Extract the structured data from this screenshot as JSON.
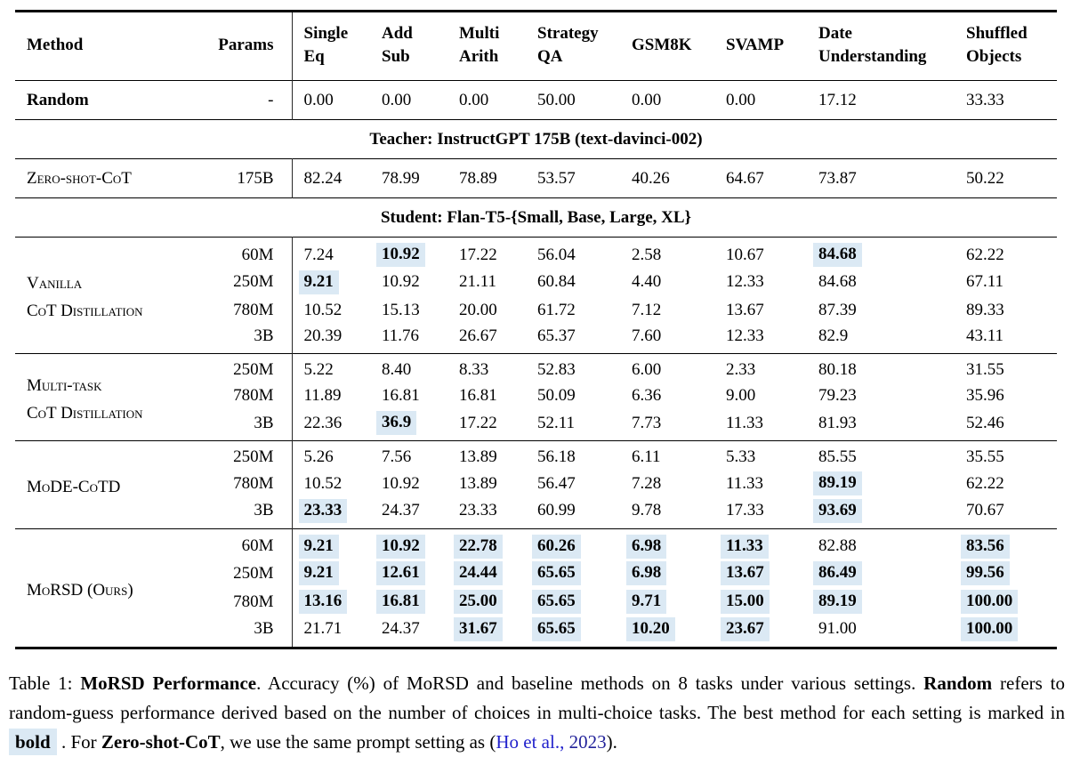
{
  "colors": {
    "highlight": "#dbe9f4",
    "link_cite": "#2222cc",
    "link_year": "#22229a",
    "rule": "#000000",
    "background": "#ffffff"
  },
  "table": {
    "columns": [
      {
        "label": "Method"
      },
      {
        "label": "Params"
      },
      {
        "label": "Single\nEq"
      },
      {
        "label": "Add\nSub"
      },
      {
        "label": "Multi\nArith"
      },
      {
        "label": "Strategy\nQA"
      },
      {
        "label": "GSM8K"
      },
      {
        "label": "SVAMP"
      },
      {
        "label": "Date\nUnderstanding"
      },
      {
        "label": "Shuffled\nObjects"
      }
    ],
    "sections": [
      {
        "method": "Random",
        "style": "bold",
        "rows": [
          {
            "params": "-",
            "cells": [
              {
                "v": "0.00"
              },
              {
                "v": "0.00"
              },
              {
                "v": "0.00"
              },
              {
                "v": "50.00"
              },
              {
                "v": "0.00"
              },
              {
                "v": "0.00"
              },
              {
                "v": "17.12"
              },
              {
                "v": "33.33"
              }
            ]
          }
        ]
      },
      {
        "banner": "Teacher: InstructGPT 175B (text-davinci-002)"
      },
      {
        "method": "Zero-shot-CoT",
        "style": "sc",
        "rows": [
          {
            "params": "175B",
            "cells": [
              {
                "v": "82.24"
              },
              {
                "v": "78.99"
              },
              {
                "v": "78.89"
              },
              {
                "v": "53.57"
              },
              {
                "v": "40.26"
              },
              {
                "v": "64.67"
              },
              {
                "v": "73.87"
              },
              {
                "v": "50.22"
              }
            ]
          }
        ]
      },
      {
        "banner": "Student: Flan-T5-{Small, Base, Large, XL}"
      },
      {
        "method": "Vanilla\nCoT Distillation",
        "style": "sc",
        "rows": [
          {
            "params": "60M",
            "cells": [
              {
                "v": "7.24"
              },
              {
                "v": "10.92",
                "h": true
              },
              {
                "v": "17.22"
              },
              {
                "v": "56.04"
              },
              {
                "v": "2.58"
              },
              {
                "v": "10.67"
              },
              {
                "v": "84.68",
                "h": true
              },
              {
                "v": "62.22"
              }
            ]
          },
          {
            "params": "250M",
            "cells": [
              {
                "v": "9.21",
                "h": true
              },
              {
                "v": "10.92"
              },
              {
                "v": "21.11"
              },
              {
                "v": "60.84"
              },
              {
                "v": "4.40"
              },
              {
                "v": "12.33"
              },
              {
                "v": "84.68"
              },
              {
                "v": "67.11"
              }
            ]
          },
          {
            "params": "780M",
            "cells": [
              {
                "v": "10.52"
              },
              {
                "v": "15.13"
              },
              {
                "v": "20.00"
              },
              {
                "v": "61.72"
              },
              {
                "v": "7.12"
              },
              {
                "v": "13.67"
              },
              {
                "v": "87.39"
              },
              {
                "v": "89.33"
              }
            ]
          },
          {
            "params": "3B",
            "cells": [
              {
                "v": "20.39"
              },
              {
                "v": "11.76"
              },
              {
                "v": "26.67"
              },
              {
                "v": "65.37"
              },
              {
                "v": "7.60"
              },
              {
                "v": "12.33"
              },
              {
                "v": "82.9"
              },
              {
                "v": "43.11"
              }
            ]
          }
        ]
      },
      {
        "method": "Multi-task\nCoT Distillation",
        "style": "sc",
        "rows": [
          {
            "params": "250M",
            "cells": [
              {
                "v": "5.22"
              },
              {
                "v": "8.40"
              },
              {
                "v": "8.33"
              },
              {
                "v": "52.83"
              },
              {
                "v": "6.00"
              },
              {
                "v": "2.33"
              },
              {
                "v": "80.18"
              },
              {
                "v": "31.55"
              }
            ]
          },
          {
            "params": "780M",
            "cells": [
              {
                "v": "11.89"
              },
              {
                "v": "16.81"
              },
              {
                "v": "16.81"
              },
              {
                "v": "50.09"
              },
              {
                "v": "6.36"
              },
              {
                "v": "9.00"
              },
              {
                "v": "79.23"
              },
              {
                "v": "35.96"
              }
            ]
          },
          {
            "params": "3B",
            "cells": [
              {
                "v": "22.36"
              },
              {
                "v": "36.9",
                "h": true
              },
              {
                "v": "17.22"
              },
              {
                "v": "52.11"
              },
              {
                "v": "7.73"
              },
              {
                "v": "11.33"
              },
              {
                "v": "81.93"
              },
              {
                "v": "52.46"
              }
            ]
          }
        ]
      },
      {
        "method": "MoDE-CoTD",
        "style": "sc",
        "rows": [
          {
            "params": "250M",
            "cells": [
              {
                "v": "5.26"
              },
              {
                "v": "7.56"
              },
              {
                "v": "13.89"
              },
              {
                "v": "56.18"
              },
              {
                "v": "6.11"
              },
              {
                "v": "5.33"
              },
              {
                "v": "85.55"
              },
              {
                "v": "35.55"
              }
            ]
          },
          {
            "params": "780M",
            "cells": [
              {
                "v": "10.52"
              },
              {
                "v": "10.92"
              },
              {
                "v": "13.89"
              },
              {
                "v": "56.47"
              },
              {
                "v": "7.28"
              },
              {
                "v": "11.33"
              },
              {
                "v": "89.19",
                "h": true
              },
              {
                "v": "62.22"
              }
            ]
          },
          {
            "params": "3B",
            "cells": [
              {
                "v": "23.33",
                "h": true
              },
              {
                "v": "24.37"
              },
              {
                "v": "23.33"
              },
              {
                "v": "60.99"
              },
              {
                "v": "9.78"
              },
              {
                "v": "17.33"
              },
              {
                "v": "93.69",
                "h": true
              },
              {
                "v": "70.67"
              }
            ]
          }
        ]
      },
      {
        "method": "MoRSD (Ours)",
        "style": "sc",
        "rows": [
          {
            "params": "60M",
            "cells": [
              {
                "v": "9.21",
                "h": true
              },
              {
                "v": "10.92",
                "h": true
              },
              {
                "v": "22.78",
                "h": true
              },
              {
                "v": "60.26",
                "h": true
              },
              {
                "v": "6.98",
                "h": true
              },
              {
                "v": "11.33",
                "h": true
              },
              {
                "v": "82.88"
              },
              {
                "v": "83.56",
                "h": true
              }
            ]
          },
          {
            "params": "250M",
            "cells": [
              {
                "v": "9.21",
                "h": true
              },
              {
                "v": "12.61",
                "h": true
              },
              {
                "v": "24.44",
                "h": true
              },
              {
                "v": "65.65",
                "h": true
              },
              {
                "v": "6.98",
                "h": true
              },
              {
                "v": "13.67",
                "h": true
              },
              {
                "v": "86.49",
                "h": true
              },
              {
                "v": "99.56",
                "h": true
              }
            ]
          },
          {
            "params": "780M",
            "cells": [
              {
                "v": "13.16",
                "h": true
              },
              {
                "v": "16.81",
                "h": true
              },
              {
                "v": "25.00",
                "h": true
              },
              {
                "v": "65.65",
                "h": true
              },
              {
                "v": "9.71",
                "h": true
              },
              {
                "v": "15.00",
                "h": true
              },
              {
                "v": "89.19",
                "h": true
              },
              {
                "v": "100.00",
                "h": true
              }
            ]
          },
          {
            "params": "3B",
            "cells": [
              {
                "v": "21.71"
              },
              {
                "v": "24.37"
              },
              {
                "v": "31.67",
                "h": true
              },
              {
                "v": "65.65",
                "h": true
              },
              {
                "v": "10.20",
                "h": true
              },
              {
                "v": "23.67",
                "h": true
              },
              {
                "v": "91.00"
              },
              {
                "v": "100.00",
                "h": true
              }
            ]
          }
        ]
      }
    ]
  },
  "caption": {
    "segments": [
      {
        "text": "Table 1: "
      },
      {
        "text": "MoRSD Performance",
        "b": true
      },
      {
        "text": ". Accuracy (%) of MoRSD and baseline methods on 8 tasks under various settings. "
      },
      {
        "text": "Random",
        "b": true
      },
      {
        "text": " refers to random-guess performance derived based on the number of choices in multi-choice tasks. The best method for each setting is marked in "
      },
      {
        "text": "bold",
        "hl": true
      },
      {
        "text": " . For "
      },
      {
        "text": "Zero-shot-CoT",
        "b": true
      },
      {
        "text": ", we use the same prompt setting as ("
      },
      {
        "text": "Ho et al.,",
        "cite": true
      },
      {
        "text": " "
      },
      {
        "text": "2023",
        "year": true
      },
      {
        "text": ")."
      }
    ]
  }
}
